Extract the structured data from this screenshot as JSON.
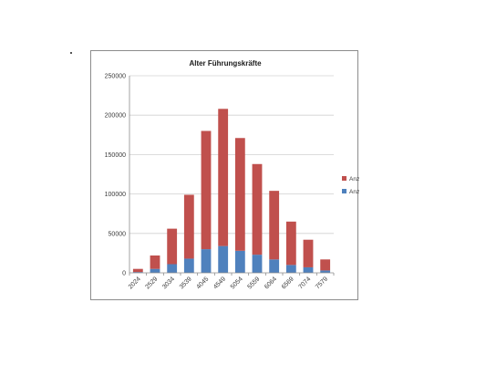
{
  "chart_data": {
    "type": "bar",
    "stacked": true,
    "title": "Alter Führungskräfte",
    "xlabel": "",
    "ylabel": "",
    "categories": [
      "2024",
      "2529",
      "3034",
      "3539",
      "4045",
      "4549",
      "5054",
      "5559",
      "6064",
      "6569",
      "7074",
      "7579"
    ],
    "series": [
      {
        "name": "Anzahl Frauen",
        "color": "#4f81bd",
        "values": [
          1000,
          5000,
          11000,
          18000,
          30000,
          34000,
          28000,
          23000,
          17000,
          10000,
          7000,
          3000
        ]
      },
      {
        "name": "Anzahl Männer",
        "color": "#c0504d",
        "values": [
          4000,
          17000,
          45000,
          81000,
          150000,
          174000,
          143000,
          115000,
          87000,
          55000,
          35000,
          14000
        ]
      }
    ],
    "ylim": [
      0,
      250000
    ],
    "yticks": [
      0,
      50000,
      100000,
      150000,
      200000,
      250000
    ],
    "grid": true,
    "legend": "right",
    "legend_order": [
      "Anzahl Männer",
      "Anzahl Frauen"
    ]
  }
}
